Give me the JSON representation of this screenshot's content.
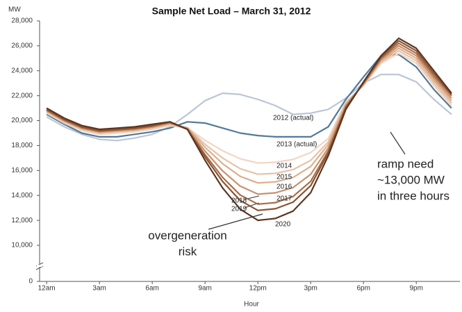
{
  "chart_data": {
    "type": "line",
    "title": "Sample Net Load – March 31, 2012",
    "y_label": "MW",
    "x_label": "Hour",
    "x": [
      0,
      1,
      2,
      3,
      4,
      5,
      6,
      7,
      8,
      9,
      10,
      11,
      12,
      13,
      14,
      15,
      16,
      17,
      18,
      19,
      20,
      21,
      22,
      23
    ],
    "xlim": [
      -0.4,
      23.4
    ],
    "xticks": [
      {
        "value": 0,
        "label": "12am"
      },
      {
        "value": 3,
        "label": "3am"
      },
      {
        "value": 6,
        "label": "6am"
      },
      {
        "value": 9,
        "label": "9am"
      },
      {
        "value": 12,
        "label": "12pm"
      },
      {
        "value": 15,
        "label": "3pm"
      },
      {
        "value": 18,
        "label": "6pm"
      },
      {
        "value": 21,
        "label": "9pm"
      }
    ],
    "ylim": [
      0,
      28000
    ],
    "yticks": [
      0,
      {
        "value": 10000,
        "label": "10,000"
      },
      {
        "value": 12000,
        "label": "12,000"
      },
      {
        "value": 14000,
        "label": "14,000"
      },
      {
        "value": 16000,
        "label": "16,000"
      },
      {
        "value": 18000,
        "label": "18,000"
      },
      {
        "value": 20000,
        "label": "20,000"
      },
      {
        "value": 22000,
        "label": "22,000"
      },
      {
        "value": 24000,
        "label": "24,000"
      },
      {
        "value": 26000,
        "label": "26,000"
      },
      {
        "value": 28000,
        "label": "28,000"
      }
    ],
    "y_break": true,
    "series": [
      {
        "name": "2012 (actual)",
        "color": "#b9c6d8",
        "values": [
          20300,
          19500,
          18900,
          18500,
          18400,
          18600,
          18900,
          19500,
          20500,
          21600,
          22200,
          22100,
          21700,
          21200,
          20500,
          20600,
          20900,
          21800,
          23000,
          23700,
          23700,
          23100,
          21700,
          20500
        ]
      },
      {
        "name": "2013 (actual)",
        "color": "#4f7a9a",
        "values": [
          20500,
          19700,
          19000,
          18700,
          18700,
          18900,
          19100,
          19400,
          19900,
          19800,
          19400,
          19000,
          18800,
          18700,
          18700,
          18700,
          19500,
          21700,
          23500,
          25200,
          25300,
          24300,
          22500,
          21000
        ]
      },
      {
        "name": "2014",
        "color": "#f2d5c3",
        "values": [
          20600,
          19800,
          19200,
          18900,
          19000,
          19100,
          19300,
          19600,
          19400,
          18420,
          17580,
          16940,
          16600,
          16660,
          16880,
          17440,
          18560,
          21500,
          22800,
          24600,
          25400,
          24600,
          22800,
          21200
        ]
      },
      {
        "name": "2015",
        "color": "#e8c2a6",
        "values": [
          20700,
          19900,
          19300,
          19000,
          19100,
          19200,
          19400,
          19700,
          19450,
          18100,
          17000,
          16140,
          15700,
          15770,
          16070,
          16810,
          18290,
          21400,
          22850,
          24700,
          25600,
          24800,
          23000,
          21400
        ]
      },
      {
        "name": "2016",
        "color": "#dcaf8d",
        "values": [
          20750,
          19950,
          19350,
          19050,
          19150,
          19250,
          19450,
          19750,
          19400,
          17860,
          16540,
          15530,
          15000,
          15090,
          15440,
          16320,
          18080,
          21300,
          22900,
          24800,
          25800,
          25000,
          23200,
          21600
        ]
      },
      {
        "name": "2017",
        "color": "#c8916c",
        "values": [
          20800,
          20000,
          19400,
          19100,
          19200,
          19300,
          19500,
          19800,
          19350,
          17550,
          15960,
          14740,
          14100,
          14210,
          14630,
          15690,
          17810,
          21200,
          22950,
          24900,
          26000,
          25200,
          23400,
          21800
        ]
      },
      {
        "name": "2018",
        "color": "#a86d48",
        "values": [
          20850,
          20050,
          19450,
          19150,
          19250,
          19350,
          19550,
          19850,
          19300,
          17270,
          15440,
          14030,
          13300,
          13420,
          13910,
          15130,
          17570,
          21100,
          23000,
          25000,
          26200,
          25400,
          23600,
          22000
        ]
      },
      {
        "name": "2019",
        "color": "#8a5233",
        "values": [
          20900,
          20100,
          19500,
          19200,
          19300,
          19400,
          19600,
          19900,
          19300,
          17090,
          15110,
          13590,
          12800,
          12930,
          13460,
          14780,
          17420,
          21000,
          23050,
          25100,
          26400,
          25600,
          23800,
          22100
        ]
      },
      {
        "name": "2020",
        "color": "#5c3520",
        "values": [
          21000,
          20200,
          19600,
          19300,
          19400,
          19500,
          19700,
          19900,
          19300,
          16810,
          14590,
          12890,
          12000,
          12150,
          12740,
          14220,
          17180,
          20900,
          23100,
          25200,
          26600,
          25800,
          24000,
          22200
        ]
      }
    ],
    "annotations": [
      [
        "overgeneration",
        "risk"
      ],
      [
        "ramp need",
        "~13,000 MW",
        "in three hours"
      ]
    ]
  }
}
